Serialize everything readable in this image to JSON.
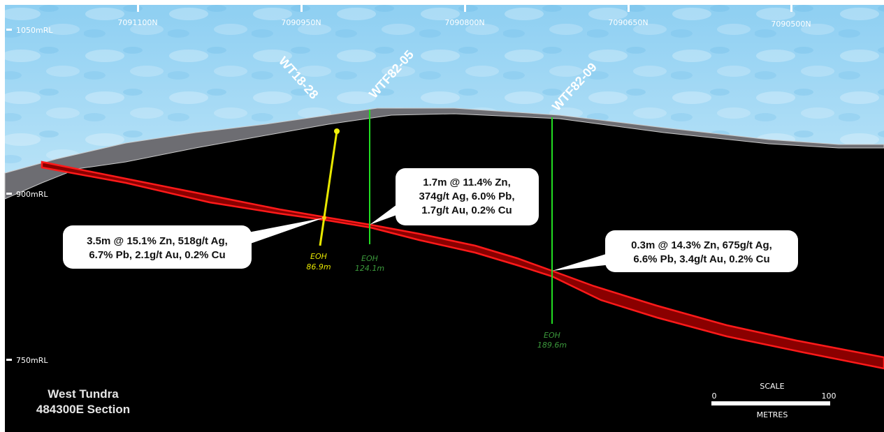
{
  "northings": [
    "7091100N",
    "7090950N",
    "7090800N",
    "7090650N",
    "7090500N"
  ],
  "elevations": [
    "1050mRL",
    "900mRL",
    "750mRL"
  ],
  "drillholes": [
    {
      "name": "WT18-28",
      "color": "#e8e800",
      "eoh_label": "EOH",
      "eoh_depth": "86.9m"
    },
    {
      "name": "WTF82-05",
      "color": "#22dd22",
      "eoh_label": "EOH",
      "eoh_depth": "124.1m"
    },
    {
      "name": "WTF82-09",
      "color": "#22dd22",
      "eoh_label": "EOH",
      "eoh_depth": "189.6m"
    }
  ],
  "intercepts": [
    {
      "lines": [
        "3.5m @ 15.1% Zn, 518g/t Ag,",
        "6.7% Pb, 2.1g/t Au, 0.2% Cu"
      ]
    },
    {
      "lines": [
        "1.7m @ 11.4% Zn,",
        "374g/t Ag, 6.0% Pb,",
        "1.7g/t Au, 0.2% Cu"
      ]
    },
    {
      "lines": [
        "0.3m @ 14.3% Zn, 675g/t Ag,",
        "6.6% Pb, 3.4g/t Au, 0.2% Cu"
      ]
    }
  ],
  "title": {
    "line1": "West Tundra",
    "line2": "484300E Section"
  },
  "scale": {
    "label": "SCALE",
    "min": "0",
    "max": "100",
    "units": "METRES"
  },
  "colors": {
    "sky": "#9fd6f3",
    "ground": "#000000",
    "overburden": "#6f6f74",
    "mineralization": "#e00000"
  }
}
